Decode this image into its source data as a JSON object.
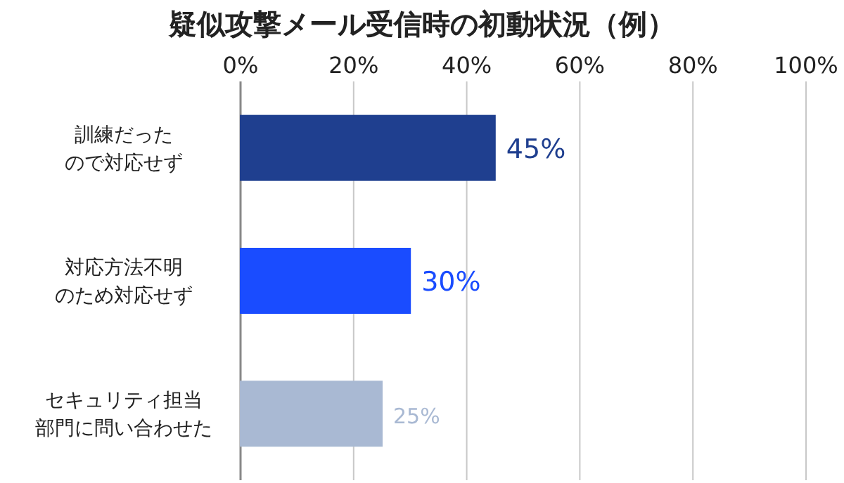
{
  "chart_data": {
    "type": "bar",
    "orientation": "horizontal",
    "title": "疑似攻撃メール受信時の初動状況（例）",
    "categories": [
      "訓練だったので対応せず",
      "対応方法不明のため対応せず",
      "セキュリティ担当部門に問い合わせた"
    ],
    "values": [
      45,
      30,
      25
    ],
    "colors": [
      "#1f3f8f",
      "#1a4cff",
      "#a9b9d3"
    ],
    "xlim": [
      0,
      100
    ],
    "xticks": [
      {
        "value": 0,
        "label": "0%"
      },
      {
        "value": 20,
        "label": "20%"
      },
      {
        "value": 40,
        "label": "40%"
      },
      {
        "value": 60,
        "label": "60%"
      },
      {
        "value": 80,
        "label": "80%"
      },
      {
        "value": 100,
        "label": "100%"
      }
    ],
    "value_labels": [
      "45%",
      "30%",
      "25%"
    ],
    "grid": "x"
  }
}
